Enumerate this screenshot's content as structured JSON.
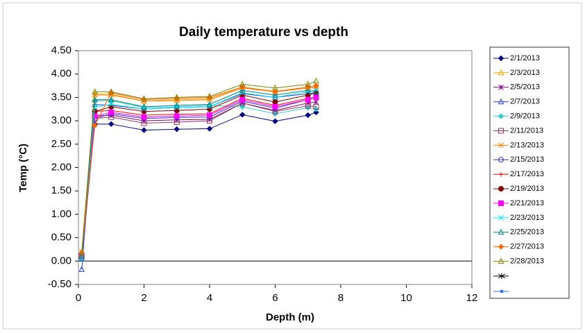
{
  "chart_data": {
    "type": "line",
    "title": "Daily temperature vs depth",
    "x_label": "Depth (m)",
    "y_label": "Temp (°C)",
    "x": [
      0.1,
      0.5,
      1,
      2,
      3,
      4,
      5,
      6,
      7,
      7.25
    ],
    "xlim": [
      0,
      12
    ],
    "xticks": [
      0,
      2,
      4,
      6,
      8,
      10,
      12
    ],
    "ylim": [
      -0.5,
      4.5
    ],
    "yticks": [
      {
        "value": -0.5,
        "label": "-0.50"
      },
      {
        "value": 0,
        "label": "0.00"
      },
      {
        "value": 0.5,
        "label": "0.50"
      },
      {
        "value": 1,
        "label": "1.00"
      },
      {
        "value": 1.5,
        "label": "1.50"
      },
      {
        "value": 2,
        "label": "2.00"
      },
      {
        "value": 2.5,
        "label": "2.50"
      },
      {
        "value": 3,
        "label": "3.00"
      },
      {
        "value": 3.5,
        "label": "3.50"
      },
      {
        "value": 4,
        "label": "4.00"
      },
      {
        "value": 4.5,
        "label": "4.50"
      }
    ],
    "series": [
      {
        "name": "2/1/2013",
        "color": "#000080",
        "marker": "diamond",
        "values": [
          0.05,
          2.93,
          2.93,
          2.8,
          2.82,
          2.83,
          3.13,
          2.99,
          3.12,
          3.18
        ]
      },
      {
        "name": "2/3/2013",
        "color": "#ffa500",
        "marker": "triangle",
        "values": [
          0.15,
          3.57,
          3.57,
          3.42,
          3.45,
          3.47,
          3.72,
          3.63,
          3.72,
          3.75
        ]
      },
      {
        "name": "2/5/2013",
        "color": "#800080",
        "marker": "star",
        "values": [
          0.1,
          3.1,
          3.12,
          3.0,
          3.02,
          3.03,
          3.38,
          3.22,
          3.38,
          3.4
        ]
      },
      {
        "name": "2/7/2013",
        "color": "#1f3fd0",
        "marker": "triangle",
        "values": [
          -0.18,
          3.35,
          3.33,
          3.25,
          3.28,
          3.3,
          3.58,
          3.5,
          3.58,
          3.6
        ]
      },
      {
        "name": "2/9/2013",
        "color": "#33cccc",
        "marker": "diamond",
        "values": [
          0.05,
          3.43,
          3.43,
          3.28,
          3.3,
          3.33,
          3.3,
          3.15,
          3.28,
          3.25
        ]
      },
      {
        "name": "2/11/2013",
        "color": "#993366",
        "marker": "square",
        "values": [
          0.1,
          3.05,
          3.08,
          2.95,
          2.97,
          3.0,
          3.38,
          3.2,
          3.32,
          3.3
        ]
      },
      {
        "name": "2/13/2013",
        "color": "#ff8000",
        "marker": "x",
        "values": [
          0.2,
          3.55,
          3.55,
          3.42,
          3.43,
          3.45,
          3.7,
          3.62,
          3.7,
          3.72
        ]
      },
      {
        "name": "2/15/2013",
        "color": "#3333cc",
        "marker": "circle",
        "values": [
          0.05,
          3.05,
          3.15,
          3.05,
          3.07,
          3.08,
          3.42,
          3.27,
          3.45,
          3.5
        ]
      },
      {
        "name": "2/17/2013",
        "color": "#ff0000",
        "marker": "plus",
        "values": [
          0.12,
          3.2,
          3.22,
          3.12,
          3.14,
          3.15,
          3.48,
          3.33,
          3.48,
          3.5
        ]
      },
      {
        "name": "2/19/2013",
        "color": "#800000",
        "marker": "circle",
        "values": [
          0.15,
          3.2,
          3.3,
          3.2,
          3.22,
          3.25,
          3.55,
          3.4,
          3.55,
          3.6
        ]
      },
      {
        "name": "2/21/2013",
        "color": "#ff00ff",
        "marker": "square",
        "values": [
          0.1,
          3.1,
          3.18,
          3.08,
          3.1,
          3.12,
          3.45,
          3.3,
          3.45,
          3.5
        ]
      },
      {
        "name": "2/23/2013",
        "color": "#00e5ff",
        "marker": "x",
        "values": [
          0.08,
          3.3,
          3.35,
          3.25,
          3.28,
          3.3,
          3.6,
          3.5,
          3.62,
          3.65
        ]
      },
      {
        "name": "2/25/2013",
        "color": "#008080",
        "marker": "triangle",
        "values": [
          0.1,
          3.45,
          3.45,
          3.3,
          3.33,
          3.35,
          3.65,
          3.55,
          3.65,
          3.62
        ]
      },
      {
        "name": "2/27/2013",
        "color": "#ff6600",
        "marker": "diamond",
        "values": [
          0.18,
          2.9,
          3.6,
          3.45,
          3.48,
          3.5,
          3.72,
          3.62,
          3.72,
          3.75
        ]
      },
      {
        "name": "2/28/2013",
        "color": "#808000",
        "marker": "triangle",
        "values": [
          0.13,
          3.62,
          3.62,
          3.47,
          3.5,
          3.52,
          3.78,
          3.7,
          3.78,
          3.85
        ]
      }
    ]
  }
}
